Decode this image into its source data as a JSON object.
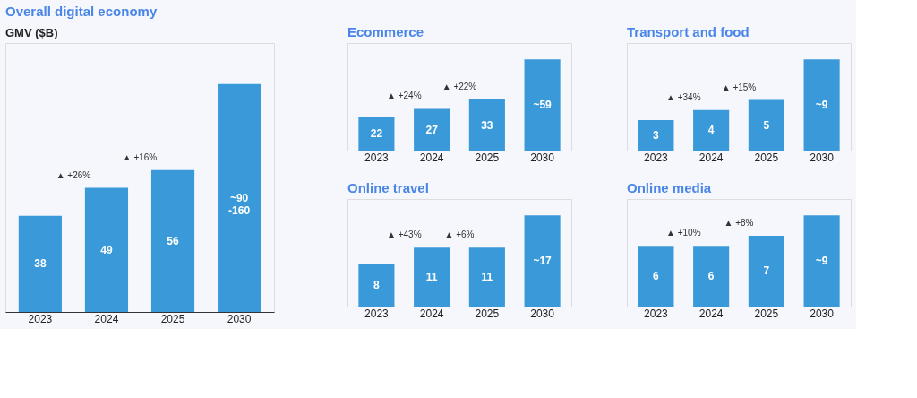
{
  "chart_data": [
    {
      "type": "bar",
      "title": "Overall digital economy",
      "subtitle": "GMV ($B)",
      "tick_labels": "x",
      "color": "#3a9ad9",
      "categories": [
        "2023",
        "2024",
        "2025",
        "2030"
      ],
      "values": [
        38,
        49,
        56,
        90
      ],
      "value_labels": [
        "38",
        "49",
        "56",
        "~90\n-160"
      ],
      "annotations": [
        "▲ +26%",
        "▲ +16%"
      ]
    },
    {
      "type": "bar",
      "title": "Ecommerce",
      "tick_labels": "x",
      "color": "#3a9ad9",
      "categories": [
        "2023",
        "2024",
        "2025",
        "2030"
      ],
      "values": [
        22,
        27,
        33,
        59
      ],
      "value_labels": [
        "22",
        "27",
        "33",
        "~59"
      ],
      "annotations": [
        "▲ +24%",
        "▲ +22%"
      ]
    },
    {
      "type": "bar",
      "title": "Transport and food",
      "tick_labels": "x",
      "color": "#3a9ad9",
      "categories": [
        "2023",
        "2024",
        "2025",
        "2030"
      ],
      "values": [
        3,
        4,
        5,
        9
      ],
      "value_labels": [
        "3",
        "4",
        "5",
        "~9"
      ],
      "annotations": [
        "▲ +34%",
        "▲ +15%"
      ]
    },
    {
      "type": "bar",
      "title": "Online travel",
      "tick_labels": "x",
      "color": "#3a9ad9",
      "categories": [
        "2023",
        "2024",
        "2025",
        "2030"
      ],
      "values": [
        8,
        11,
        11,
        17
      ],
      "value_labels": [
        "8",
        "11",
        "11",
        "~17"
      ],
      "annotations": [
        "▲ +43%",
        "▲ +6%"
      ]
    },
    {
      "type": "bar",
      "title": "Online media",
      "tick_labels": "x",
      "color": "#3a9ad9",
      "categories": [
        "2023",
        "2024",
        "2025",
        "2030"
      ],
      "values": [
        6,
        6,
        7,
        9
      ],
      "value_labels": [
        "6",
        "6",
        "7",
        "~9"
      ],
      "annotations": [
        "▲ +10%",
        "▲ +8%"
      ]
    }
  ]
}
